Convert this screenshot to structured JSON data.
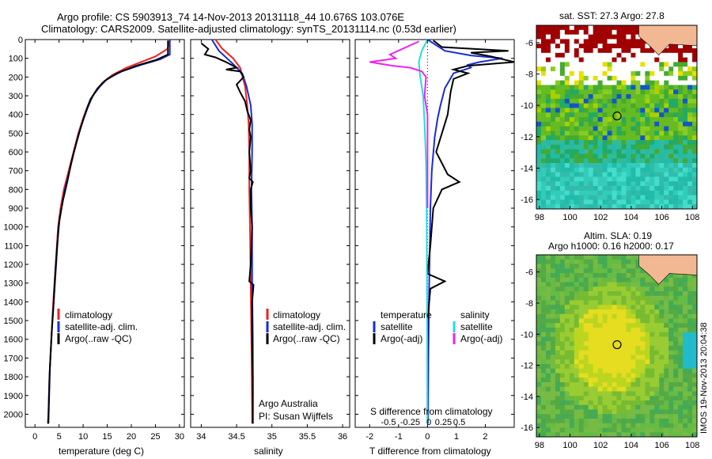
{
  "header": {
    "line1": "Argo profile: CS 5903913_74 14-Nov-2013 20131118_44 10.676S 103.076E",
    "line2": "Climatology: CARS2009. Satellite-adjusted climatology: synTS_20131114.nc (0.53d earlier)"
  },
  "colors": {
    "climatology": "#ee2222",
    "satellite": "#1a2bd6",
    "argo": "#000000",
    "sat_salinity": "#22dddd",
    "argo_salinity": "#ee22ee",
    "land": "#f2b894"
  },
  "chart_data": [
    {
      "type": "line",
      "id": "temperature",
      "xlabel": "temperature (deg C)",
      "ylabel": "",
      "xlim": [
        -2,
        31
      ],
      "ylim": [
        2070,
        0
      ],
      "xticks": [
        "0",
        "5",
        "10",
        "15",
        "20",
        "25",
        "30"
      ],
      "xtick_values": [
        0,
        5,
        10,
        15,
        20,
        25,
        30
      ],
      "yticks": [
        "0",
        "100",
        "200",
        "300",
        "400",
        "500",
        "600",
        "700",
        "800",
        "900",
        "1000",
        "1100",
        "1200",
        "1300",
        "1400",
        "1500",
        "1600",
        "1700",
        "1800",
        "1900",
        "2000"
      ],
      "ytick_values": [
        0,
        100,
        200,
        300,
        400,
        500,
        600,
        700,
        800,
        900,
        1000,
        1100,
        1200,
        1300,
        1400,
        1500,
        1600,
        1700,
        1800,
        1900,
        2000
      ],
      "legend": [
        "climatology",
        "satellite-adj. clim.",
        "Argo(..raw -QC)"
      ],
      "series": [
        {
          "name": "climatology",
          "color": "#ee2222",
          "points": [
            [
              28,
              0
            ],
            [
              27.5,
              50
            ],
            [
              25,
              90
            ],
            [
              22,
              120
            ],
            [
              19,
              150
            ],
            [
              16,
              190
            ],
            [
              14,
              230
            ],
            [
              12.5,
              280
            ],
            [
              11,
              350
            ],
            [
              10,
              420
            ],
            [
              9,
              500
            ],
            [
              8,
              600
            ],
            [
              7,
              700
            ],
            [
              6,
              800
            ],
            [
              5.3,
              900
            ],
            [
              4.8,
              1000
            ],
            [
              4.3,
              1200
            ],
            [
              3.8,
              1400
            ],
            [
              3.4,
              1600
            ],
            [
              3.0,
              1800
            ],
            [
              2.8,
              2000
            ],
            [
              2.7,
              2050
            ]
          ]
        },
        {
          "name": "satellite-adj. clim.",
          "color": "#1a2bd6",
          "points": [
            [
              28,
              0
            ],
            [
              28,
              80
            ],
            [
              26,
              105
            ],
            [
              22,
              135
            ],
            [
              18,
              170
            ],
            [
              15,
              210
            ],
            [
              13.5,
              250
            ],
            [
              12,
              300
            ],
            [
              11,
              360
            ],
            [
              10,
              430
            ],
            [
              9,
              510
            ],
            [
              8,
              610
            ],
            [
              7.2,
              700
            ],
            [
              6.2,
              800
            ],
            [
              5.5,
              900
            ],
            [
              4.9,
              1000
            ],
            [
              4.4,
              1200
            ],
            [
              3.9,
              1400
            ],
            [
              3.4,
              1600
            ],
            [
              3.0,
              1800
            ],
            [
              2.8,
              2000
            ],
            [
              2.7,
              2050
            ]
          ]
        },
        {
          "name": "Argo(..raw -QC)",
          "color": "#000000",
          "points": [
            [
              27.6,
              5
            ],
            [
              27.6,
              80
            ],
            [
              25,
              110
            ],
            [
              21,
              140
            ],
            [
              17,
              180
            ],
            [
              14.5,
              220
            ],
            [
              13,
              260
            ],
            [
              11.5,
              320
            ],
            [
              10.5,
              390
            ],
            [
              9.5,
              470
            ],
            [
              8.5,
              560
            ],
            [
              7.5,
              660
            ],
            [
              6.7,
              760
            ],
            [
              5.8,
              860
            ],
            [
              5.1,
              960
            ],
            [
              4.6,
              1100
            ],
            [
              4.2,
              1250
            ],
            [
              3.9,
              1400
            ],
            [
              3.5,
              1550
            ],
            [
              3.1,
              1750
            ],
            [
              2.9,
              1950
            ],
            [
              2.8,
              2050
            ]
          ]
        }
      ]
    },
    {
      "type": "line",
      "id": "salinity",
      "xlabel": "salinity",
      "xlim": [
        33.85,
        36.1
      ],
      "ylim": [
        2070,
        0
      ],
      "xticks": [
        "34",
        "34.5",
        "35",
        "35.5",
        "36"
      ],
      "xtick_values": [
        34,
        34.5,
        35,
        35.5,
        36
      ],
      "legend": [
        "climatology",
        "satellite-adj. clim.",
        "Argo(..raw -QC)"
      ],
      "annotations": [
        "Argo Australia",
        "PI: Susan Wijffels"
      ],
      "series": [
        {
          "name": "climatology",
          "color": "#ee2222",
          "points": [
            [
              34.2,
              0
            ],
            [
              34.3,
              50
            ],
            [
              34.45,
              100
            ],
            [
              34.55,
              150
            ],
            [
              34.62,
              250
            ],
            [
              34.65,
              350
            ],
            [
              34.67,
              450
            ],
            [
              34.68,
              600
            ],
            [
              34.68,
              800
            ],
            [
              34.69,
              1000
            ],
            [
              34.7,
              1300
            ],
            [
              34.71,
              1600
            ],
            [
              34.72,
              2000
            ],
            [
              34.72,
              2050
            ]
          ]
        },
        {
          "name": "satellite-adj. clim.",
          "color": "#1a2bd6",
          "points": [
            [
              34.15,
              0
            ],
            [
              34.25,
              60
            ],
            [
              34.45,
              130
            ],
            [
              34.58,
              180
            ],
            [
              34.64,
              250
            ],
            [
              34.7,
              350
            ],
            [
              34.72,
              450
            ],
            [
              34.72,
              600
            ],
            [
              34.71,
              800
            ],
            [
              34.72,
              1000
            ],
            [
              34.72,
              1300
            ],
            [
              34.73,
              1600
            ],
            [
              34.73,
              2000
            ],
            [
              34.73,
              2050
            ]
          ]
        },
        {
          "name": "Argo(..raw -QC)",
          "color": "#000000",
          "points": [
            [
              34.0,
              20
            ],
            [
              34.1,
              50
            ],
            [
              34.05,
              80
            ],
            [
              34.2,
              95
            ],
            [
              34.35,
              120
            ],
            [
              34.5,
              150
            ],
            [
              34.35,
              160
            ],
            [
              34.55,
              170
            ],
            [
              34.6,
              200
            ],
            [
              34.5,
              240
            ],
            [
              34.55,
              280
            ],
            [
              34.62,
              330
            ],
            [
              34.65,
              380
            ],
            [
              34.7,
              430
            ],
            [
              34.68,
              480
            ],
            [
              34.7,
              520
            ],
            [
              34.68,
              600
            ],
            [
              34.7,
              700
            ],
            [
              34.68,
              740
            ],
            [
              34.73,
              760
            ],
            [
              34.7,
              800
            ],
            [
              34.7,
              900
            ],
            [
              34.72,
              1000
            ],
            [
              34.7,
              1200
            ],
            [
              34.68,
              1290
            ],
            [
              34.74,
              1310
            ],
            [
              34.72,
              1400
            ],
            [
              34.72,
              1600
            ],
            [
              34.73,
              1800
            ],
            [
              34.73,
              2000
            ],
            [
              34.73,
              2050
            ]
          ]
        }
      ]
    },
    {
      "type": "line",
      "id": "difference",
      "xlabel": "T difference from climatology",
      "xlabel_top": "S difference from climatology",
      "xlim": [
        -2.5,
        3.0
      ],
      "ylim": [
        2070,
        0
      ],
      "xticks": [
        "-2",
        "-1",
        "0",
        "1",
        "2"
      ],
      "xtick_values": [
        -2,
        -1,
        0,
        1,
        2
      ],
      "sticks": [
        "-0.5",
        "-0.25",
        "0",
        "0.25",
        "0.5"
      ],
      "stick_values": [
        -1.35,
        -0.6,
        0.05,
        0.55,
        1.1
      ],
      "legend_left_title": "temperature",
      "legend_right_title": "salinity",
      "legend_left": [
        "satellite",
        "Argo(-adj)"
      ],
      "legend_right": [
        "satellite",
        "Argo(-adj)"
      ],
      "series": [
        {
          "name": "satellite",
          "color": "#1a2bd6",
          "points": [
            [
              0,
              0
            ],
            [
              0.6,
              60
            ],
            [
              1.5,
              85
            ],
            [
              2.6,
              100
            ],
            [
              1.8,
              120
            ],
            [
              1.4,
              135
            ],
            [
              1.5,
              150
            ],
            [
              0.9,
              180
            ],
            [
              0.6,
              260
            ],
            [
              0.45,
              350
            ],
            [
              0.35,
              420
            ],
            [
              0.25,
              520
            ],
            [
              0.15,
              700
            ],
            [
              0.1,
              900
            ],
            [
              0.08,
              1100
            ],
            [
              0.05,
              1400
            ],
            [
              0.03,
              1700
            ],
            [
              0.02,
              2050
            ]
          ]
        },
        {
          "name": "Argo(-adj)",
          "color": "#000000",
          "points": [
            [
              0.2,
              5
            ],
            [
              0.5,
              40
            ],
            [
              2.8,
              60
            ],
            [
              1.5,
              70
            ],
            [
              2.2,
              90
            ],
            [
              3.0,
              120
            ],
            [
              1.4,
              140
            ],
            [
              0.9,
              160
            ],
            [
              1.4,
              180
            ],
            [
              0.9,
              210
            ],
            [
              0.8,
              280
            ],
            [
              0.7,
              400
            ],
            [
              0.5,
              500
            ],
            [
              0.3,
              600
            ],
            [
              0.7,
              720
            ],
            [
              1.1,
              760
            ],
            [
              0.5,
              800
            ],
            [
              0.2,
              900
            ],
            [
              0.1,
              1100
            ],
            [
              0.0,
              1250
            ],
            [
              0.6,
              1290
            ],
            [
              0.1,
              1330
            ],
            [
              0.0,
              1500
            ],
            [
              0.0,
              1800
            ],
            [
              0.0,
              2050
            ]
          ]
        },
        {
          "name": "S satellite",
          "color": "#22dddd",
          "points": [
            [
              0,
              0
            ],
            [
              -0.2,
              60
            ],
            [
              -0.3,
              120
            ],
            [
              -0.25,
              200
            ],
            [
              -0.15,
              300
            ],
            [
              -0.1,
              450
            ],
            [
              -0.05,
              650
            ],
            [
              -0.03,
              900
            ],
            [
              -0.02,
              1200
            ],
            [
              -0.01,
              1600
            ],
            [
              0.0,
              2050
            ]
          ]
        },
        {
          "name": "S Argo(-adj)",
          "color": "#ee22ee",
          "points": [
            [
              -0.3,
              10
            ],
            [
              -1.3,
              80
            ],
            [
              -1.1,
              100
            ],
            [
              -2.0,
              120
            ],
            [
              -1.2,
              140
            ],
            [
              -0.6,
              150
            ],
            [
              -0.2,
              170
            ],
            [
              -0.05,
              200
            ],
            [
              -0.1,
              300
            ],
            [
              0,
              400
            ],
            [
              0,
              600
            ],
            [
              0,
              900
            ]
          ]
        }
      ]
    },
    {
      "type": "heatmap",
      "id": "sst_map",
      "title": "sat. SST: 27.3 Argo: 27.8",
      "xticks": [
        "98",
        "100",
        "102",
        "104",
        "106",
        "108"
      ],
      "xtick_values": [
        98,
        100,
        102,
        104,
        106,
        108
      ],
      "yticks": [
        "-6",
        "-8",
        "-10",
        "-12",
        "-14",
        "-16"
      ],
      "ytick_values": [
        -6,
        -8,
        -10,
        -12,
        -14,
        -16
      ],
      "xlim": [
        97.8,
        108.3
      ],
      "ylim": [
        -16.6,
        -4.9
      ],
      "marker": [
        103.076,
        -10.676
      ]
    },
    {
      "type": "heatmap",
      "id": "sla_map",
      "title": "Altim. SLA: 0.19",
      "subtitle": "Argo h1000: 0.16 h2000: 0.17",
      "xticks": [
        "98",
        "100",
        "102",
        "104",
        "106",
        "108"
      ],
      "xtick_values": [
        98,
        100,
        102,
        104,
        106,
        108
      ],
      "yticks": [
        "-6",
        "-8",
        "-10",
        "-12",
        "-14",
        "-16"
      ],
      "ytick_values": [
        -6,
        -8,
        -10,
        -12,
        -14,
        -16
      ],
      "xlim": [
        97.8,
        108.3
      ],
      "ylim": [
        -16.6,
        -4.9
      ],
      "marker": [
        103.076,
        -10.676
      ],
      "side_label": "IMOS 19-Nov-2013 20:04:38"
    }
  ]
}
